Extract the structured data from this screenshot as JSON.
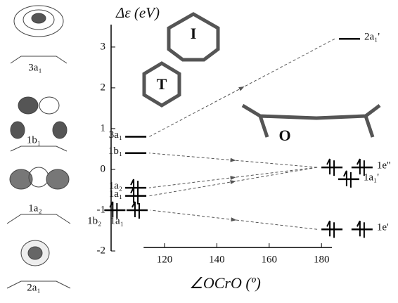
{
  "chart_data": {
    "type": "levels",
    "y_label": "Δε (eV)",
    "x_label": "∠OCrO (º)",
    "ylim": [
      -2,
      3.55
    ],
    "yticks": [
      -2,
      -1,
      0,
      1,
      2,
      3
    ],
    "xlim": [
      112,
      184
    ],
    "xticks": [
      120,
      140,
      160,
      180
    ],
    "levels": [
      {
        "label": "3a₁",
        "energy": 0.8,
        "x": [
          109
        ],
        "occupied": false
      },
      {
        "label": "1b₁",
        "energy": 0.4,
        "x": [
          109
        ],
        "occupied": false
      },
      {
        "label": "1a₂",
        "energy": -0.45,
        "x": [
          109
        ],
        "occupied": true
      },
      {
        "label": "1a₁",
        "energy": -0.65,
        "x": [
          109
        ],
        "occupied": true
      },
      {
        "label": "1b₂",
        "energy": -1.0,
        "x": [
          101
        ],
        "occupied": true
      },
      {
        "label": "1a₁",
        "energy": -1.0,
        "x": [
          109.5
        ],
        "occupied": true
      },
      {
        "label": "2a₁'",
        "energy": 3.2,
        "x": [
          190.7
        ],
        "occupied": false
      },
      {
        "label": "1e''",
        "energy": 0.05,
        "x": [
          184,
          195.5
        ],
        "occupied": true
      },
      {
        "label": "1a₁'",
        "energy": -0.24,
        "x": [
          190.4
        ],
        "occupied": true
      },
      {
        "label": "1e'",
        "energy": -1.47,
        "x": [
          184,
          195.5
        ],
        "occupied": true
      }
    ],
    "structures": [
      "T",
      "I",
      "O"
    ],
    "orbitals": [
      "3a₁",
      "1b₁",
      "1a₂",
      "2a₁"
    ]
  }
}
